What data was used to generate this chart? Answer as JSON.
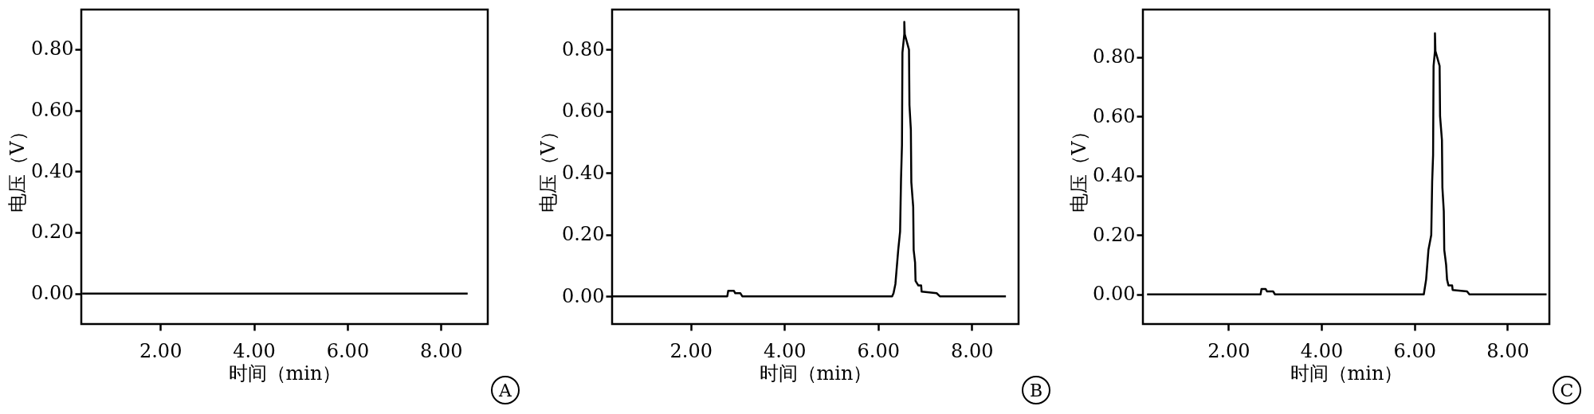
{
  "chart_data": [
    {
      "type": "line",
      "xlabel": "时间（min）",
      "ylabel": "电压（V）",
      "annotations": [
        "A"
      ],
      "xlim": [
        0.31,
        9.0
      ],
      "ylim": [
        -0.1,
        0.93
      ],
      "xticks": [
        {
          "value": 2,
          "label": "2.00"
        },
        {
          "value": 4,
          "label": "4.00"
        },
        {
          "value": 6,
          "label": "6.00"
        },
        {
          "value": 8,
          "label": "8.00"
        }
      ],
      "yticks": [
        {
          "value": 0,
          "label": "0.00"
        },
        {
          "value": 0.2,
          "label": "0.20"
        },
        {
          "value": 0.4,
          "label": "0.40"
        },
        {
          "value": 0.6,
          "label": "0.60"
        },
        {
          "value": 0.8,
          "label": "0.80"
        }
      ],
      "grid": false,
      "series": [
        {
          "color": "#000000",
          "x": [
            0.33,
            8.57
          ],
          "values": [
            0,
            0
          ]
        }
      ]
    },
    {
      "type": "line",
      "xlabel": "时间（min）",
      "ylabel": "电压（V）",
      "annotations": [
        "B"
      ],
      "xlim": [
        0.32,
        9.0
      ],
      "ylim": [
        -0.09,
        0.93
      ],
      "xticks": [
        {
          "value": 2,
          "label": "2.00"
        },
        {
          "value": 4,
          "label": "4.00"
        },
        {
          "value": 6,
          "label": "6.00"
        },
        {
          "value": 8,
          "label": "8.00"
        }
      ],
      "yticks": [
        {
          "value": 0,
          "label": "0.00"
        },
        {
          "value": 0.2,
          "label": "0.20"
        },
        {
          "value": 0.4,
          "label": "0.40"
        },
        {
          "value": 0.6,
          "label": "0.60"
        },
        {
          "value": 0.8,
          "label": "0.80"
        }
      ],
      "grid": false,
      "series": [
        {
          "color": "#000000",
          "x": [
            0.32,
            2.78,
            2.8,
            2.92,
            2.95,
            3.06,
            3.1,
            6.3,
            6.33,
            6.37,
            6.43,
            6.47,
            6.49,
            6.51,
            6.52,
            6.56,
            6.56,
            6.57,
            6.66,
            6.67,
            6.7,
            6.71,
            6.75,
            6.76,
            6.79,
            6.8,
            6.86,
            6.92,
            6.93,
            7.25,
            7.32,
            8.73
          ],
          "values": [
            0,
            0,
            0.018,
            0.018,
            0.01,
            0.01,
            0,
            0,
            0.01,
            0.04,
            0.15,
            0.21,
            0.38,
            0.49,
            0.79,
            0.85,
            0.89,
            0.85,
            0.8,
            0.62,
            0.54,
            0.37,
            0.29,
            0.15,
            0.11,
            0.05,
            0.035,
            0.035,
            0.015,
            0.01,
            0,
            0
          ]
        }
      ]
    },
    {
      "type": "line",
      "xlabel": "时间（min）",
      "ylabel": "电压（V）",
      "annotations": [
        "C"
      ],
      "xlim": [
        0.16,
        8.9
      ],
      "ylim": [
        -0.1,
        0.96
      ],
      "xticks": [
        {
          "value": 2,
          "label": "2.00"
        },
        {
          "value": 4,
          "label": "4.00"
        },
        {
          "value": 6,
          "label": "6.00"
        },
        {
          "value": 8,
          "label": "8.00"
        }
      ],
      "yticks": [
        {
          "value": 0,
          "label": "0.00"
        },
        {
          "value": 0.2,
          "label": "0.20"
        },
        {
          "value": 0.4,
          "label": "0.40"
        },
        {
          "value": 0.6,
          "label": "0.60"
        },
        {
          "value": 0.8,
          "label": "0.80"
        }
      ],
      "grid": false,
      "series": [
        {
          "color": "#000000",
          "x": [
            0.25,
            2.69,
            2.71,
            2.8,
            2.83,
            2.96,
            3.0,
            6.2,
            6.21,
            6.25,
            6.3,
            6.36,
            6.38,
            6.4,
            6.41,
            6.44,
            6.44,
            6.45,
            6.54,
            6.55,
            6.59,
            6.6,
            6.63,
            6.64,
            6.68,
            6.7,
            6.73,
            6.81,
            6.82,
            7.13,
            7.18,
            8.84
          ],
          "values": [
            0,
            0,
            0.018,
            0.018,
            0.01,
            0.01,
            0,
            0,
            0.01,
            0.05,
            0.15,
            0.2,
            0.38,
            0.47,
            0.77,
            0.82,
            0.88,
            0.82,
            0.77,
            0.6,
            0.52,
            0.36,
            0.28,
            0.15,
            0.1,
            0.05,
            0.03,
            0.03,
            0.015,
            0.01,
            0,
            0
          ]
        }
      ]
    }
  ]
}
